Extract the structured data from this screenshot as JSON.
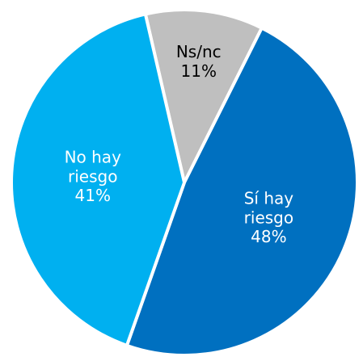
{
  "chart_data": {
    "type": "pie",
    "categories": [
      "Ns/nc",
      "Sí hay riesgo",
      "No hay riesgo"
    ],
    "values": [
      11,
      48,
      41
    ],
    "value_labels": [
      "11%",
      "48%",
      "41%"
    ],
    "colors": [
      "#bfbfbf",
      "#0070c0",
      "#00b0f0"
    ]
  }
}
